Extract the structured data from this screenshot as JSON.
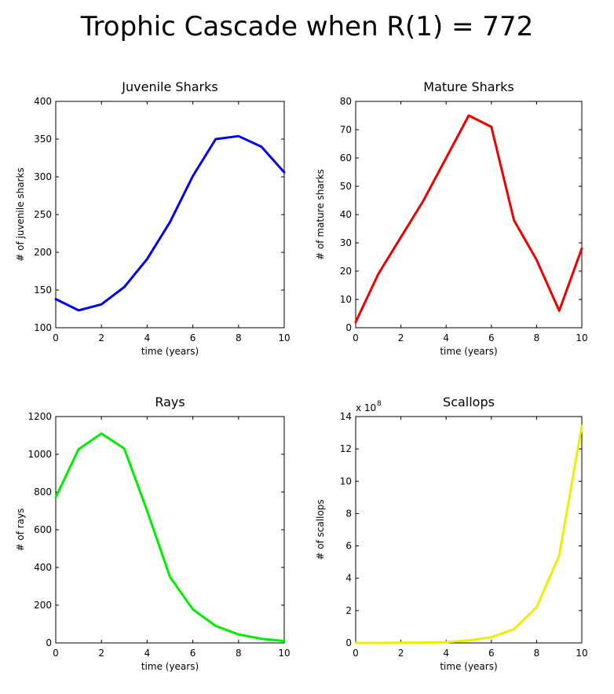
{
  "page_title": "Trophic Cascade when R(1) = 772",
  "chart_data": [
    {
      "type": "line",
      "title": "Juvenile Sharks",
      "xlabel": "time (years)",
      "ylabel": "# of juvenile sharks",
      "xlim": [
        0,
        10
      ],
      "ylim": [
        100,
        400
      ],
      "xticks": [
        0,
        2,
        4,
        6,
        8,
        10
      ],
      "yticks": [
        100,
        150,
        200,
        250,
        300,
        350,
        400
      ],
      "color": "#0000ee",
      "x": [
        0,
        1,
        2,
        3,
        4,
        5,
        6,
        7,
        8,
        9,
        10
      ],
      "y": [
        138,
        123,
        131,
        154,
        191,
        240,
        301,
        350,
        354,
        340,
        306
      ]
    },
    {
      "type": "line",
      "title": "Mature Sharks",
      "xlabel": "time (years)",
      "ylabel": "# of mature sharks",
      "xlim": [
        0,
        10
      ],
      "ylim": [
        0,
        80
      ],
      "xticks": [
        0,
        2,
        4,
        6,
        8,
        10
      ],
      "yticks": [
        0,
        10,
        20,
        30,
        40,
        50,
        60,
        70,
        80
      ],
      "color": "#ee0000",
      "x": [
        0,
        1,
        2,
        3,
        4,
        5,
        6,
        7,
        8,
        9,
        10
      ],
      "y": [
        2,
        19,
        32,
        45,
        60,
        75,
        71,
        38,
        24,
        6,
        28
      ]
    },
    {
      "type": "line",
      "title": "Rays",
      "xlabel": "time (years)",
      "ylabel": "# of rays",
      "xlim": [
        0,
        10
      ],
      "ylim": [
        0,
        1200
      ],
      "xticks": [
        0,
        2,
        4,
        6,
        8,
        10
      ],
      "yticks": [
        0,
        200,
        400,
        600,
        800,
        1000,
        1200
      ],
      "color": "#00ee00",
      "x": [
        0,
        1,
        2,
        3,
        4,
        5,
        6,
        7,
        8,
        9,
        10
      ],
      "y": [
        772,
        1027,
        1110,
        1030,
        700,
        350,
        178,
        90,
        45,
        22,
        10
      ]
    },
    {
      "type": "line",
      "title": "Scallops",
      "xlabel": "time (years)",
      "ylabel": "# of scallops",
      "exponent_label": "x 10",
      "exponent": "8",
      "xlim": [
        0,
        10
      ],
      "ylim": [
        0,
        14
      ],
      "xticks": [
        0,
        2,
        4,
        6,
        8,
        10
      ],
      "yticks": [
        0,
        2,
        4,
        6,
        8,
        10,
        12,
        14
      ],
      "color": "#eeee00",
      "x": [
        0,
        1,
        2,
        3,
        4,
        5,
        6,
        7,
        8,
        9,
        10
      ],
      "y": [
        0,
        0,
        0.01,
        0.02,
        0.05,
        0.15,
        0.35,
        0.85,
        2.2,
        5.4,
        13.4
      ]
    }
  ]
}
